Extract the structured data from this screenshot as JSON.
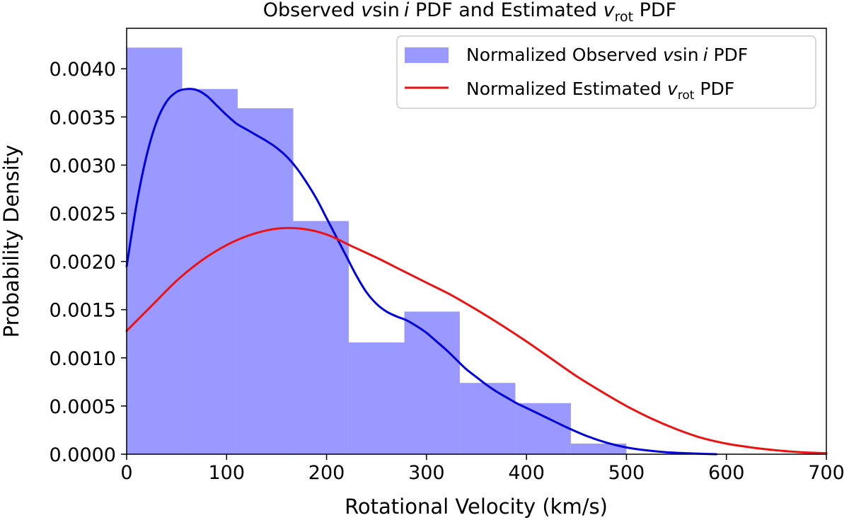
{
  "chart_data": {
    "type": "histogram+line",
    "title": "Observed vsin i PDF and Estimated v_rot PDF",
    "title_parts": {
      "prefix": "Observed ",
      "v": "v",
      "sin": "sin",
      "i": "i",
      "middle": " PDF and Estimated ",
      "v2": "v",
      "rot": "rot",
      "suffix": " PDF"
    },
    "xlabel": "Rotational Velocity (km/s)",
    "ylabel": "Probability Density",
    "xlim": [
      0,
      700
    ],
    "ylim": [
      0,
      0.00442
    ],
    "xticks": [
      0,
      100,
      200,
      300,
      400,
      500,
      600,
      700
    ],
    "xtick_labels": [
      "0",
      "100",
      "200",
      "300",
      "400",
      "500",
      "600",
      "700"
    ],
    "yticks": [
      0,
      0.0005,
      0.001,
      0.0015,
      0.002,
      0.0025,
      0.003,
      0.0035,
      0.004
    ],
    "ytick_labels": [
      "0.0000",
      "0.0005",
      "0.0010",
      "0.0015",
      "0.0020",
      "0.0025",
      "0.0030",
      "0.0035",
      "0.0040"
    ],
    "histogram": {
      "name": "Normalized Observed vsin i PDF",
      "color": "#9999ff",
      "bin_edges": [
        0,
        55.6,
        111.1,
        166.7,
        222.2,
        277.8,
        333.3,
        388.9,
        444.4,
        500
      ],
      "values": [
        0.00422,
        0.00379,
        0.00359,
        0.00242,
        0.00116,
        0.00148,
        0.00074,
        0.00053,
        0.00011
      ]
    },
    "series": [
      {
        "name": "Observed vsin i KDE",
        "color": "#0000dd",
        "x": [
          0,
          10,
          20,
          30,
          40,
          50,
          60,
          70,
          80,
          90,
          100,
          110,
          120,
          130,
          140,
          150,
          160,
          170,
          180,
          190,
          200,
          210,
          220,
          230,
          240,
          250,
          260,
          270,
          280,
          290,
          300,
          310,
          320,
          330,
          340,
          350,
          360,
          370,
          380,
          390,
          400,
          420,
          440,
          460,
          480,
          500,
          520,
          540,
          560,
          580,
          590
        ],
        "y": [
          0.00195,
          0.0026,
          0.0031,
          0.00345,
          0.00366,
          0.00376,
          0.00379,
          0.00378,
          0.00372,
          0.00362,
          0.00352,
          0.00343,
          0.00337,
          0.00331,
          0.00325,
          0.00318,
          0.00309,
          0.00297,
          0.00282,
          0.00265,
          0.00245,
          0.00225,
          0.00205,
          0.00185,
          0.00168,
          0.00156,
          0.00148,
          0.00143,
          0.00139,
          0.00133,
          0.00126,
          0.00117,
          0.00108,
          0.00098,
          0.00088,
          0.0008,
          0.00072,
          0.00065,
          0.00059,
          0.00053,
          0.00048,
          0.00038,
          0.00028,
          0.00019,
          0.00012,
          7e-05,
          4e-05,
          2e-05,
          1e-05,
          3e-06,
          0.0
        ]
      },
      {
        "name": "Normalized Estimated v_rot PDF",
        "color": "#ee1111",
        "x": [
          0,
          25,
          50,
          75,
          100,
          125,
          150,
          175,
          200,
          225,
          250,
          275,
          300,
          325,
          350,
          375,
          400,
          425,
          450,
          475,
          500,
          525,
          550,
          575,
          600,
          625,
          650,
          675,
          700
        ],
        "y": [
          0.00128,
          0.00154,
          0.0018,
          0.00201,
          0.00217,
          0.00228,
          0.00234,
          0.00234,
          0.00228,
          0.00216,
          0.00204,
          0.00191,
          0.00178,
          0.00165,
          0.0015,
          0.00134,
          0.00117,
          0.00099,
          0.00081,
          0.00065,
          0.0005,
          0.00037,
          0.00026,
          0.00017,
          0.00011,
          7e-05,
          4e-05,
          2e-05,
          1e-05
        ]
      }
    ],
    "legend": {
      "position": "upper right",
      "items": [
        {
          "kind": "patch",
          "color": "#9999ff",
          "label": "Normalized Observed vsin i PDF",
          "parts": {
            "prefix": "Normalized Observed ",
            "v": "v",
            "sin": "sin",
            "i": "i",
            "suffix": " PDF"
          }
        },
        {
          "kind": "line",
          "color": "#ee1111",
          "label": "Normalized Estimated v_rot PDF",
          "parts": {
            "prefix": "Normalized Estimated ",
            "v": "v",
            "rot": "rot",
            "suffix": " PDF"
          }
        }
      ]
    }
  }
}
